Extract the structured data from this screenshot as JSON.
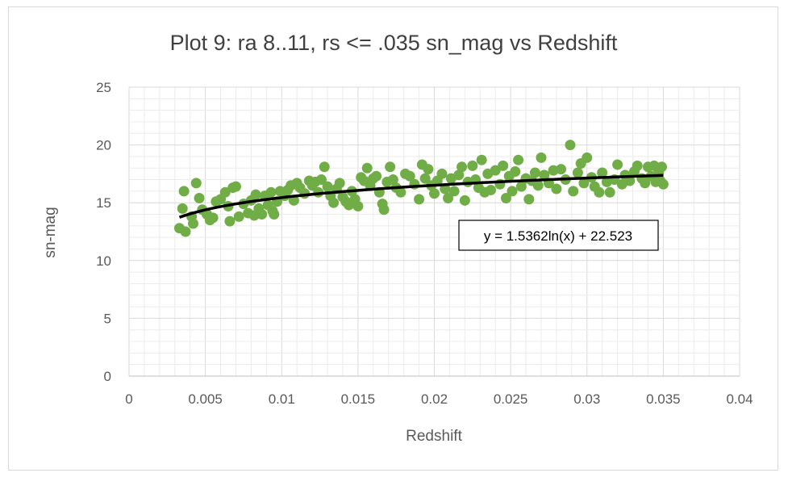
{
  "chart_data": {
    "type": "scatter",
    "title": "Plot 9: ra 8..11, rs <= .035 sn_mag vs Redshift",
    "xlabel": "Redshift",
    "ylabel": "sn-mag",
    "xlim": [
      0,
      0.04
    ],
    "ylim": [
      0,
      25
    ],
    "x_ticks": [
      "0",
      "0.005",
      "0.01",
      "0.015",
      "0.02",
      "0.025",
      "0.03",
      "0.035",
      "0.04"
    ],
    "y_ticks": [
      "0",
      "5",
      "10",
      "15",
      "20",
      "25"
    ],
    "grid": "major and minor",
    "marker_color": "#70ad47",
    "trendline": {
      "type": "logarithmic",
      "a": 1.5362,
      "b": 22.523,
      "x_range": [
        0.0033,
        0.035
      ],
      "color": "#000000",
      "label": "y = 1.5362ln(x) + 22.523"
    },
    "series": [
      {
        "points": [
          [
            0.0033,
            12.8
          ],
          [
            0.0035,
            14.5
          ],
          [
            0.0036,
            16.0
          ],
          [
            0.0037,
            12.5
          ],
          [
            0.0041,
            13.8
          ],
          [
            0.0042,
            13.2
          ],
          [
            0.0044,
            16.7
          ],
          [
            0.0046,
            15.4
          ],
          [
            0.0048,
            14.4
          ],
          [
            0.0051,
            14.0
          ],
          [
            0.0053,
            13.5
          ],
          [
            0.0055,
            13.7
          ],
          [
            0.0057,
            15.1
          ],
          [
            0.006,
            15.3
          ],
          [
            0.0063,
            15.9
          ],
          [
            0.0065,
            14.7
          ],
          [
            0.0066,
            13.4
          ],
          [
            0.0068,
            16.3
          ],
          [
            0.007,
            16.4
          ],
          [
            0.0072,
            13.8
          ],
          [
            0.0075,
            14.9
          ],
          [
            0.0078,
            14.1
          ],
          [
            0.008,
            15.2
          ],
          [
            0.0082,
            13.9
          ],
          [
            0.0083,
            15.7
          ],
          [
            0.0085,
            14.5
          ],
          [
            0.0087,
            14.0
          ],
          [
            0.0089,
            15.6
          ],
          [
            0.0091,
            14.8
          ],
          [
            0.0093,
            15.9
          ],
          [
            0.0094,
            14.3
          ],
          [
            0.0095,
            14.0
          ],
          [
            0.0097,
            15.1
          ],
          [
            0.0099,
            16.0
          ],
          [
            0.0102,
            15.6
          ],
          [
            0.0104,
            16.1
          ],
          [
            0.0106,
            16.5
          ],
          [
            0.0108,
            15.2
          ],
          [
            0.011,
            16.7
          ],
          [
            0.0112,
            16.3
          ],
          [
            0.0115,
            15.8
          ],
          [
            0.0118,
            16.9
          ],
          [
            0.012,
            16.5
          ],
          [
            0.0122,
            16.8
          ],
          [
            0.0124,
            15.9
          ],
          [
            0.0126,
            17.0
          ],
          [
            0.0128,
            18.1
          ],
          [
            0.013,
            16.4
          ],
          [
            0.0132,
            15.6
          ],
          [
            0.0134,
            15.0
          ],
          [
            0.0136,
            16.2
          ],
          [
            0.0138,
            16.7
          ],
          [
            0.014,
            15.5
          ],
          [
            0.0142,
            15.1
          ],
          [
            0.0144,
            14.8
          ],
          [
            0.0146,
            16.0
          ],
          [
            0.0148,
            15.3
          ],
          [
            0.015,
            14.7
          ],
          [
            0.0152,
            17.2
          ],
          [
            0.0154,
            16.9
          ],
          [
            0.0156,
            18.0
          ],
          [
            0.0158,
            16.5
          ],
          [
            0.016,
            17.1
          ],
          [
            0.0162,
            17.3
          ],
          [
            0.0164,
            15.9
          ],
          [
            0.0166,
            14.9
          ],
          [
            0.0167,
            14.4
          ],
          [
            0.0169,
            16.8
          ],
          [
            0.0171,
            18.1
          ],
          [
            0.0173,
            17.0
          ],
          [
            0.0175,
            16.3
          ],
          [
            0.0178,
            15.9
          ],
          [
            0.0181,
            17.5
          ],
          [
            0.0184,
            17.3
          ],
          [
            0.0187,
            16.6
          ],
          [
            0.019,
            15.3
          ],
          [
            0.0192,
            18.3
          ],
          [
            0.0194,
            17.1
          ],
          [
            0.0196,
            17.9
          ],
          [
            0.0198,
            16.5
          ],
          [
            0.02,
            15.8
          ],
          [
            0.0202,
            16.9
          ],
          [
            0.0205,
            17.5
          ],
          [
            0.0207,
            16.2
          ],
          [
            0.0209,
            15.4
          ],
          [
            0.0211,
            17.1
          ],
          [
            0.0213,
            16.0
          ],
          [
            0.0216,
            17.4
          ],
          [
            0.0218,
            18.1
          ],
          [
            0.022,
            15.2
          ],
          [
            0.0222,
            16.8
          ],
          [
            0.0225,
            18.2
          ],
          [
            0.0227,
            17.0
          ],
          [
            0.0229,
            16.3
          ],
          [
            0.0231,
            18.7
          ],
          [
            0.0233,
            15.9
          ],
          [
            0.0235,
            17.5
          ],
          [
            0.0237,
            16.1
          ],
          [
            0.024,
            17.8
          ],
          [
            0.0243,
            16.6
          ],
          [
            0.0245,
            18.2
          ],
          [
            0.0247,
            15.4
          ],
          [
            0.0249,
            17.3
          ],
          [
            0.0251,
            16.0
          ],
          [
            0.0253,
            17.7
          ],
          [
            0.0255,
            18.7
          ],
          [
            0.0257,
            16.4
          ],
          [
            0.026,
            17.1
          ],
          [
            0.0262,
            15.3
          ],
          [
            0.0264,
            16.9
          ],
          [
            0.0266,
            17.6
          ],
          [
            0.0268,
            16.5
          ],
          [
            0.027,
            18.9
          ],
          [
            0.0272,
            17.4
          ],
          [
            0.0275,
            16.7
          ],
          [
            0.0278,
            17.8
          ],
          [
            0.028,
            16.2
          ],
          [
            0.0283,
            17.9
          ],
          [
            0.0286,
            17.0
          ],
          [
            0.0289,
            20.0
          ],
          [
            0.0291,
            16.0
          ],
          [
            0.0294,
            17.6
          ],
          [
            0.0296,
            18.4
          ],
          [
            0.0298,
            16.7
          ],
          [
            0.03,
            18.9
          ],
          [
            0.0303,
            17.2
          ],
          [
            0.0305,
            16.4
          ],
          [
            0.0308,
            15.9
          ],
          [
            0.031,
            17.6
          ],
          [
            0.0313,
            16.8
          ],
          [
            0.0315,
            15.9
          ],
          [
            0.0318,
            17.0
          ],
          [
            0.032,
            18.3
          ],
          [
            0.0323,
            16.6
          ],
          [
            0.0325,
            17.4
          ],
          [
            0.0328,
            16.9
          ],
          [
            0.0331,
            17.7
          ],
          [
            0.0333,
            18.2
          ],
          [
            0.0336,
            17.1
          ],
          [
            0.0338,
            16.7
          ],
          [
            0.034,
            18.1
          ],
          [
            0.0342,
            17.3
          ],
          [
            0.0344,
            18.2
          ],
          [
            0.0345,
            16.8
          ],
          [
            0.0347,
            17.6
          ],
          [
            0.0348,
            16.9
          ],
          [
            0.0349,
            18.1
          ],
          [
            0.035,
            16.6
          ]
        ]
      }
    ]
  }
}
